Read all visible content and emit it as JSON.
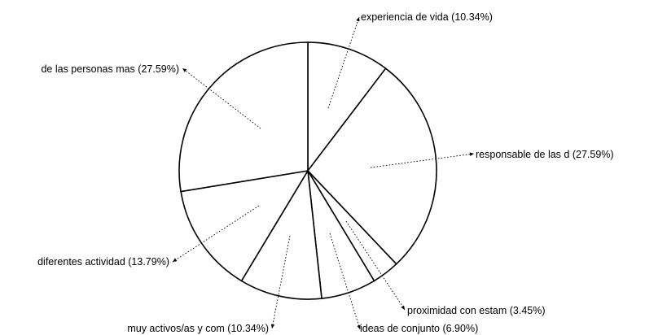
{
  "chart_data": {
    "type": "pie",
    "title": "",
    "slices": [
      {
        "label": "experiencia de vida",
        "value": 10.34,
        "percent_label": "(10.34%)"
      },
      {
        "label": "responsable de las d",
        "value": 27.59,
        "percent_label": "(27.59%)"
      },
      {
        "label": "proximidad con estam",
        "value": 3.45,
        "percent_label": "(3.45%)"
      },
      {
        "label": "ideas de conjunto",
        "value": 6.9,
        "percent_label": "(6.90%)"
      },
      {
        "label": "muy activos/as y com",
        "value": 10.34,
        "percent_label": "(10.34%)"
      },
      {
        "label": "diferentes actividad",
        "value": 13.79,
        "percent_label": "(13.79%)"
      },
      {
        "label": "de las personas mas",
        "value": 27.59,
        "percent_label": "(27.59%)"
      }
    ],
    "colors": {
      "slice_fill": "#ffffff",
      "outline": "#000000",
      "text": "#000000"
    },
    "legend": "none",
    "label_style": "outside labels with dotted leader lines"
  }
}
